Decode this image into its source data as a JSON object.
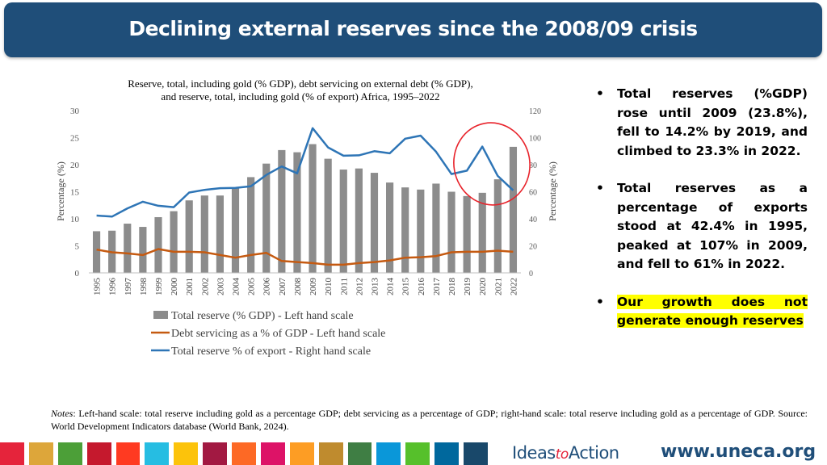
{
  "header": {
    "title": "Declining external reserves since the 2008/09 crisis"
  },
  "chart_data": {
    "type": "bar+line",
    "title": "Reserve, total,  including gold (% GDP), debt servicing on external debt (% GDP), and reserve, total,  including gold (% of export) Africa, 1995–2022",
    "title_lines": [
      "Reserve, total,  including gold (% GDP), debt servicing on external debt (% GDP),",
      "and reserve, total,  including gold (% of export) Africa, 1995–2022"
    ],
    "categories": [
      "1995",
      "1996",
      "1997",
      "1998",
      "1999",
      "2000",
      "2001",
      "2002",
      "2003",
      "2004",
      "2005",
      "2006",
      "2007",
      "2008",
      "2009",
      "2010",
      "2011",
      "2012",
      "2013",
      "2014",
      "2015",
      "2016",
      "2017",
      "2018",
      "2019",
      "2020",
      "2021",
      "2022"
    ],
    "left_axis": {
      "label": "Percentage (%)",
      "min": 0,
      "max": 30,
      "ticks": [
        "0",
        "5",
        "10",
        "15",
        "20",
        "25",
        "30"
      ]
    },
    "right_axis": {
      "label": "Percentage (%)",
      "min": 0,
      "max": 120,
      "ticks": [
        "0",
        "20",
        "40",
        "60",
        "80",
        "100",
        "120"
      ]
    },
    "series": [
      {
        "name": "Total  reserve (% GDP) - Left  hand scale",
        "type": "bar",
        "axis": "left",
        "color": "#8c8c8c",
        "values": [
          7.7,
          7.8,
          9.1,
          8.5,
          10.3,
          11.4,
          13.4,
          14.3,
          14.3,
          15.8,
          17.7,
          20.2,
          22.7,
          22.3,
          23.8,
          21.1,
          19.1,
          19.3,
          18.5,
          16.7,
          15.8,
          15.4,
          16.5,
          15.0,
          14.2,
          14.8,
          17.3,
          23.3
        ]
      },
      {
        "name": "Debt  servicing as a % of GDP -  Left hand scale",
        "type": "line",
        "axis": "left",
        "color": "#c55a11",
        "values": [
          4.3,
          3.8,
          3.6,
          3.3,
          4.4,
          3.9,
          3.9,
          3.8,
          3.3,
          2.8,
          3.3,
          3.7,
          2.2,
          2.0,
          1.8,
          1.5,
          1.5,
          1.8,
          2.0,
          2.3,
          2.8,
          2.9,
          3.1,
          3.8,
          3.9,
          3.9,
          4.1,
          3.9
        ]
      },
      {
        "name": "Total  reserve % of export - Right hand scale",
        "type": "line",
        "axis": "right",
        "color": "#2e75b6",
        "values": [
          42.4,
          41.6,
          47.7,
          52.6,
          49.6,
          48.6,
          59.4,
          61.4,
          62.6,
          62.8,
          64.0,
          72.4,
          78.7,
          73.6,
          107.0,
          92.8,
          86.6,
          86.9,
          90.0,
          88.4,
          99.2,
          101.5,
          89.6,
          73.1,
          75.6,
          93.4,
          71.7,
          61.0
        ]
      }
    ],
    "annotations": [
      "red hand-drawn circle around 2018–2022"
    ]
  },
  "bullets": {
    "b1": "Total reserves (%GDP) rose until 2009 (23.8%), fell to 14.2% by 2019, and climbed to 23.3% in 2022.",
    "b2": "Total reserves as a percentage of exports stood at 42.4% in 1995, peaked at 107% in 2009, and fell to 61% in 2022.",
    "b3": "Our growth does not generate enough reserves",
    "marker": "•"
  },
  "notes": {
    "label": "Notes",
    "text": ": Left-hand scale: total reserve including gold as a percentage GDP; debt servicing as a percentage of GDP; right-hand scale: total reserve including gold as a percentage of GDP.   Source: World Development Indicators database (World Bank, 2024)."
  },
  "footer": {
    "brand_a": "Ideas",
    "brand_b": "to",
    "brand_c": "Action",
    "site": "www.uneca.org",
    "stripe_colors": [
      "#e5243b",
      "#dda63a",
      "#4c9f38",
      "#c5192d",
      "#ff3a21",
      "#26bde2",
      "#fcc30b",
      "#a21942",
      "#fd6925",
      "#dd1367",
      "#fd9d24",
      "#bf8b2e",
      "#3f7e44",
      "#0a97d9",
      "#56c02b",
      "#00689d",
      "#19486a"
    ]
  }
}
